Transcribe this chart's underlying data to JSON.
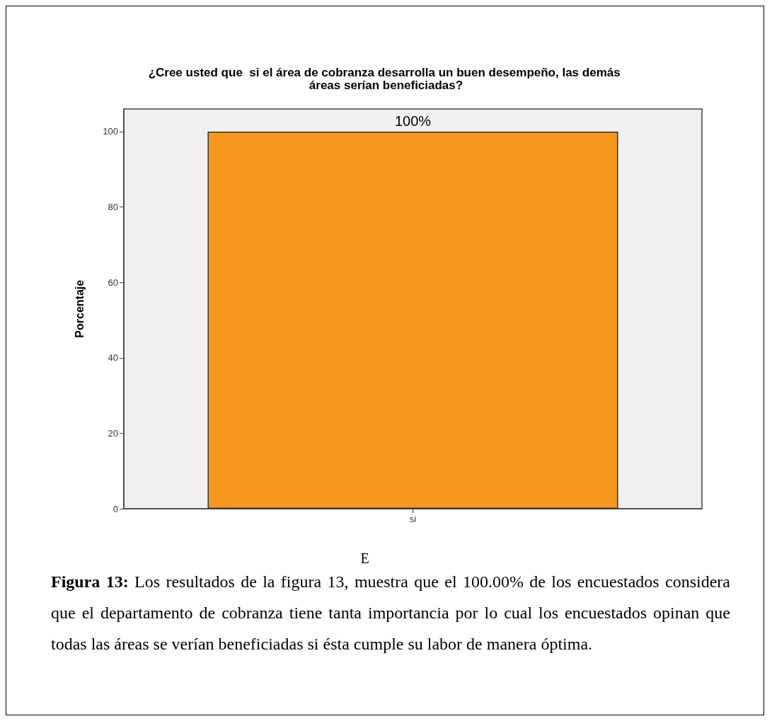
{
  "chart_data": {
    "type": "bar",
    "title": "¿Cree usted que  si el área de cobranza desarrolla un buen desempeño, las demás áreas serían beneficiadas?",
    "xlabel": "E",
    "ylabel": "Porcentaje",
    "categories": [
      "si"
    ],
    "values": [
      100
    ],
    "color": "#f7981d",
    "value_labels": [
      "100%"
    ],
    "ylim": [
      0,
      106
    ],
    "yticks": [
      0,
      20,
      40,
      60,
      80,
      100
    ],
    "grid": false,
    "annotations": [
      "Figura 13: Los resultados de la figura 13, muestra que el 100.00% de los encuestados considera que el departamento de cobranza tiene tanta importancia por lo cual los encuestados opinan que todas las áreas se verían beneficiadas si ésta cumple su labor de manera óptima."
    ]
  }
}
